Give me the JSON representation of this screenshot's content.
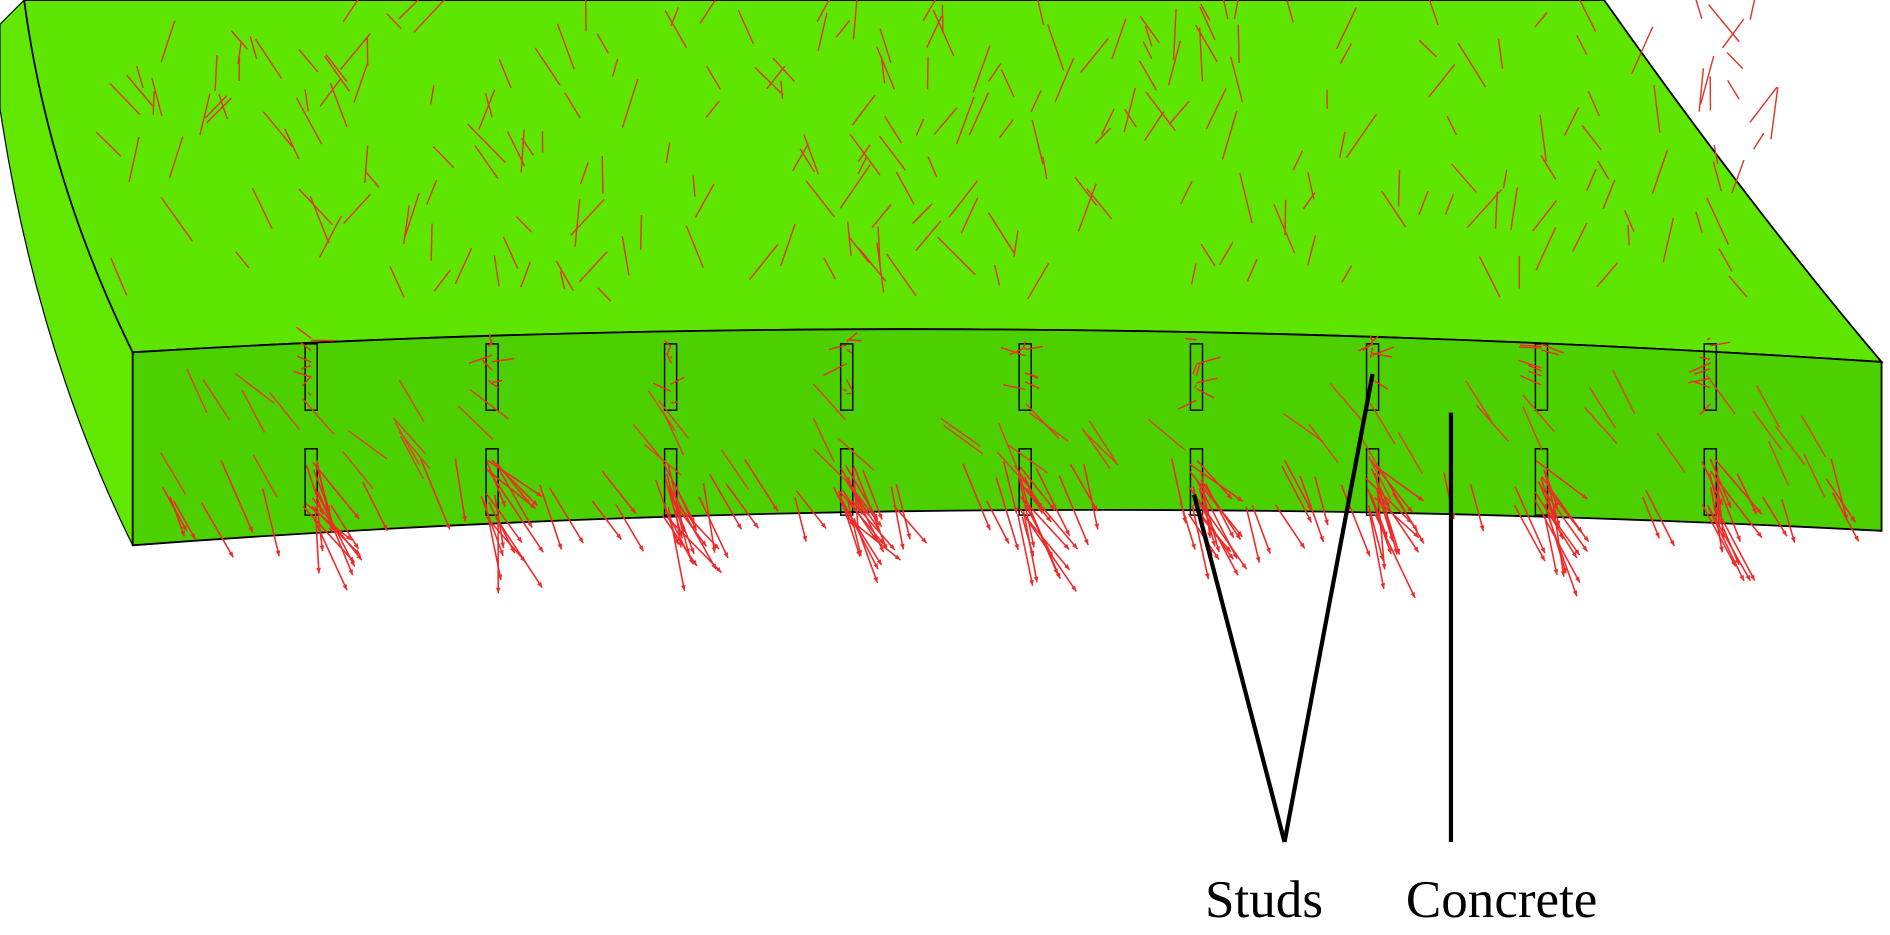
{
  "labels": {
    "studs": "Studs",
    "concrete": "Concrete"
  }
}
